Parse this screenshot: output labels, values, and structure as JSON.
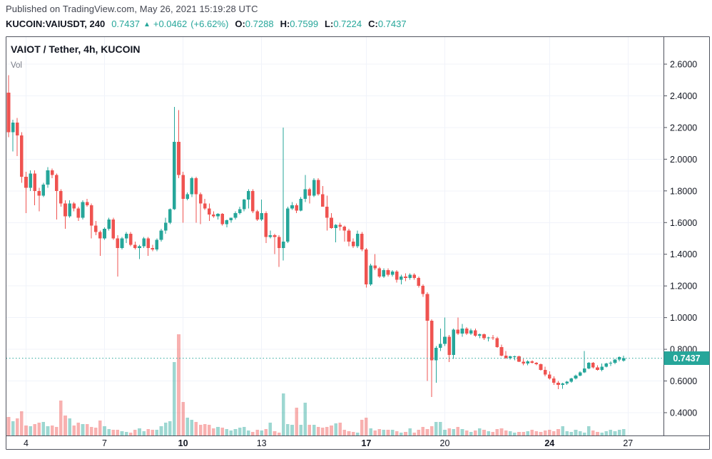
{
  "header": {
    "published": "Published on TradingView.com, May 26, 2021 15:19:28 UTC",
    "symbol": "KUCOIN:VAIUSDT, 240",
    "last_price": "0.7437",
    "arrow": "▲",
    "change_abs": "+0.0462",
    "change_pct": "(+6.62%)",
    "ohlc": {
      "o_label": "O:",
      "o": "0.7288",
      "h_label": "H:",
      "h": "0.7599",
      "l_label": "L:",
      "l": "0.7224",
      "c_label": "C:",
      "c": "0.7437"
    }
  },
  "chart": {
    "title": "VAIOT / Tether, 4h, KUCOIN",
    "indicator_label": "Vol",
    "price_label": "0.7437",
    "colors": {
      "up": "#26a69a",
      "down": "#ef5350",
      "grid": "#f0f3fa",
      "frame": "#50535e",
      "axis_text": "#131722",
      "muted_text": "#787b86",
      "price_line": "#26a69a",
      "badge_bg": "#26a69a",
      "badge_text": "#ffffff"
    }
  },
  "chart_data": {
    "type": "candlestick",
    "title": "VAIOT / Tether, 4h, KUCOIN",
    "symbol": "KUCOIN:VAIUSDT",
    "interval": "240",
    "current_price_line": 0.7437,
    "y_axis": {
      "side": "right",
      "tick_values": [
        2.6,
        2.4,
        2.2,
        2.0,
        1.8,
        1.6,
        1.4,
        1.2,
        1.0,
        0.8,
        0.6,
        0.4
      ],
      "tick_labels": [
        "2.6000",
        "2.4000",
        "2.2000",
        "2.0000",
        "1.8000",
        "1.6000",
        "1.4000",
        "1.2000",
        "1.0000",
        "0.8000",
        "0.6000",
        "0.4000"
      ],
      "visible_range": [
        0.3,
        2.7
      ]
    },
    "x_axis": {
      "context": "days of May 2021 (from header date)",
      "ticks": [
        {
          "label": "4",
          "candle_index": 4,
          "bold": false
        },
        {
          "label": "7",
          "candle_index": 22,
          "bold": false
        },
        {
          "label": "10",
          "candle_index": 40,
          "bold": true
        },
        {
          "label": "13",
          "candle_index": 58,
          "bold": false
        },
        {
          "label": "17",
          "candle_index": 82,
          "bold": true
        },
        {
          "label": "20",
          "candle_index": 100,
          "bold": false
        },
        {
          "label": "24",
          "candle_index": 124,
          "bold": true
        },
        {
          "label": "27",
          "candle_index": 142,
          "bold": false
        }
      ]
    },
    "candles_format": [
      "open",
      "high",
      "low",
      "close"
    ],
    "candles": [
      [
        2.42,
        2.53,
        2.14,
        2.17
      ],
      [
        2.17,
        2.25,
        2.05,
        2.23
      ],
      [
        2.23,
        2.26,
        2.02,
        2.15
      ],
      [
        2.15,
        2.17,
        1.85,
        1.89
      ],
      [
        1.89,
        1.92,
        1.66,
        1.82
      ],
      [
        1.82,
        1.93,
        1.8,
        1.91
      ],
      [
        1.91,
        1.93,
        1.71,
        1.8
      ],
      [
        1.8,
        1.82,
        1.67,
        1.77
      ],
      [
        1.77,
        1.85,
        1.76,
        1.84
      ],
      [
        1.84,
        1.95,
        1.82,
        1.93
      ],
      [
        1.93,
        1.94,
        1.88,
        1.9
      ],
      [
        1.9,
        1.91,
        1.62,
        1.8
      ],
      [
        1.8,
        1.81,
        1.7,
        1.72
      ],
      [
        1.72,
        1.74,
        1.56,
        1.64
      ],
      [
        1.64,
        1.74,
        1.63,
        1.72
      ],
      [
        1.72,
        1.73,
        1.67,
        1.69
      ],
      [
        1.69,
        1.7,
        1.61,
        1.63
      ],
      [
        1.63,
        1.74,
        1.62,
        1.73
      ],
      [
        1.73,
        1.75,
        1.7,
        1.71
      ],
      [
        1.71,
        1.72,
        1.5,
        1.58
      ],
      [
        1.58,
        1.61,
        1.52,
        1.54
      ],
      [
        1.54,
        1.55,
        1.39,
        1.5
      ],
      [
        1.5,
        1.57,
        1.49,
        1.56
      ],
      [
        1.56,
        1.63,
        1.55,
        1.62
      ],
      [
        1.62,
        1.63,
        1.49,
        1.5
      ],
      [
        1.5,
        1.52,
        1.26,
        1.44
      ],
      [
        1.44,
        1.51,
        1.43,
        1.5
      ],
      [
        1.5,
        1.54,
        1.47,
        1.53
      ],
      [
        1.53,
        1.54,
        1.45,
        1.46
      ],
      [
        1.46,
        1.48,
        1.43,
        1.44
      ],
      [
        1.44,
        1.46,
        1.37,
        1.45
      ],
      [
        1.45,
        1.51,
        1.44,
        1.5
      ],
      [
        1.5,
        1.51,
        1.39,
        1.44
      ],
      [
        1.44,
        1.46,
        1.42,
        1.43
      ],
      [
        1.43,
        1.5,
        1.42,
        1.49
      ],
      [
        1.49,
        1.56,
        1.48,
        1.55
      ],
      [
        1.55,
        1.63,
        1.53,
        1.6
      ],
      [
        1.6,
        1.69,
        1.59,
        1.685
      ],
      [
        1.685,
        2.33,
        1.68,
        2.11
      ],
      [
        2.11,
        2.31,
        1.88,
        1.9
      ],
      [
        1.9,
        1.92,
        1.6,
        1.75
      ],
      [
        1.75,
        1.79,
        1.74,
        1.78
      ],
      [
        1.78,
        1.89,
        1.76,
        1.88
      ],
      [
        1.88,
        1.89,
        1.6,
        1.78
      ],
      [
        1.78,
        1.79,
        1.59,
        1.72
      ],
      [
        1.72,
        1.75,
        1.68,
        1.69
      ],
      [
        1.69,
        1.72,
        1.61,
        1.65
      ],
      [
        1.65,
        1.67,
        1.63,
        1.64
      ],
      [
        1.64,
        1.66,
        1.62,
        1.655
      ],
      [
        1.655,
        1.66,
        1.58,
        1.59
      ],
      [
        1.59,
        1.62,
        1.57,
        1.615
      ],
      [
        1.615,
        1.63,
        1.6,
        1.63
      ],
      [
        1.63,
        1.67,
        1.62,
        1.66
      ],
      [
        1.66,
        1.7,
        1.65,
        1.685
      ],
      [
        1.685,
        1.75,
        1.67,
        1.745
      ],
      [
        1.745,
        1.81,
        1.69,
        1.8
      ],
      [
        1.8,
        1.81,
        1.66,
        1.67
      ],
      [
        1.67,
        1.68,
        1.61,
        1.62
      ],
      [
        1.62,
        1.745,
        1.61,
        1.66
      ],
      [
        1.66,
        1.67,
        1.47,
        1.51
      ],
      [
        1.51,
        1.55,
        1.5,
        1.52
      ],
      [
        1.52,
        1.53,
        1.4,
        1.51
      ],
      [
        1.51,
        1.52,
        1.32,
        1.44
      ],
      [
        1.44,
        2.2,
        1.36,
        1.48
      ],
      [
        1.48,
        1.7,
        1.47,
        1.69
      ],
      [
        1.69,
        1.73,
        1.68,
        1.71
      ],
      [
        1.71,
        1.72,
        1.66,
        1.675
      ],
      [
        1.675,
        1.76,
        1.67,
        1.75
      ],
      [
        1.75,
        1.9,
        1.73,
        1.81
      ],
      [
        1.81,
        1.82,
        1.72,
        1.77
      ],
      [
        1.77,
        1.88,
        1.76,
        1.87
      ],
      [
        1.87,
        1.88,
        1.77,
        1.78
      ],
      [
        1.78,
        1.83,
        1.7,
        1.7
      ],
      [
        1.7,
        1.77,
        1.55,
        1.63
      ],
      [
        1.63,
        1.66,
        1.56,
        1.565
      ],
      [
        1.565,
        1.59,
        1.475,
        1.585
      ],
      [
        1.585,
        1.6,
        1.55,
        1.575
      ],
      [
        1.575,
        1.58,
        1.48,
        1.55
      ],
      [
        1.55,
        1.56,
        1.45,
        1.48
      ],
      [
        1.48,
        1.5,
        1.44,
        1.45
      ],
      [
        1.45,
        1.55,
        1.44,
        1.53
      ],
      [
        1.53,
        1.54,
        1.42,
        1.43
      ],
      [
        1.43,
        1.44,
        1.19,
        1.21
      ],
      [
        1.21,
        1.34,
        1.2,
        1.33
      ],
      [
        1.33,
        1.4,
        1.3,
        1.31
      ],
      [
        1.31,
        1.32,
        1.25,
        1.26
      ],
      [
        1.26,
        1.31,
        1.25,
        1.3
      ],
      [
        1.3,
        1.31,
        1.26,
        1.27
      ],
      [
        1.27,
        1.3,
        1.26,
        1.29
      ],
      [
        1.29,
        1.3,
        1.22,
        1.24
      ],
      [
        1.24,
        1.27,
        1.21,
        1.26
      ],
      [
        1.26,
        1.28,
        1.23,
        1.25
      ],
      [
        1.25,
        1.28,
        1.24,
        1.27
      ],
      [
        1.27,
        1.28,
        1.24,
        1.25
      ],
      [
        1.25,
        1.26,
        1.19,
        1.2
      ],
      [
        1.2,
        1.21,
        1.13,
        1.15
      ],
      [
        1.15,
        1.16,
        0.6,
        0.98
      ],
      [
        0.98,
        0.99,
        0.5,
        0.73
      ],
      [
        0.73,
        0.82,
        0.59,
        0.81
      ],
      [
        0.81,
        0.93,
        0.79,
        0.835
      ],
      [
        0.835,
        1.0,
        0.82,
        0.88
      ],
      [
        0.88,
        0.89,
        0.72,
        0.765
      ],
      [
        0.765,
        0.93,
        0.74,
        0.925
      ],
      [
        0.925,
        1.0,
        0.89,
        0.9
      ],
      [
        0.9,
        0.96,
        0.88,
        0.93
      ],
      [
        0.93,
        0.94,
        0.89,
        0.9
      ],
      [
        0.9,
        0.93,
        0.89,
        0.92
      ],
      [
        0.92,
        0.93,
        0.88,
        0.885
      ],
      [
        0.885,
        0.9,
        0.87,
        0.895
      ],
      [
        0.895,
        0.9,
        0.86,
        0.87
      ],
      [
        0.87,
        0.88,
        0.85,
        0.875
      ],
      [
        0.875,
        0.89,
        0.86,
        0.87
      ],
      [
        0.87,
        0.88,
        0.81,
        0.815
      ],
      [
        0.815,
        0.83,
        0.755,
        0.76
      ],
      [
        0.76,
        0.79,
        0.74,
        0.745
      ],
      [
        0.745,
        0.76,
        0.735,
        0.755
      ],
      [
        0.755,
        0.76,
        0.73,
        0.756
      ],
      [
        0.756,
        0.76,
        0.72,
        0.722
      ],
      [
        0.722,
        0.74,
        0.7,
        0.71
      ],
      [
        0.71,
        0.73,
        0.7,
        0.725
      ],
      [
        0.725,
        0.73,
        0.71,
        0.715
      ],
      [
        0.715,
        0.72,
        0.7,
        0.705
      ],
      [
        0.705,
        0.71,
        0.665,
        0.67
      ],
      [
        0.67,
        0.69,
        0.63,
        0.64
      ],
      [
        0.64,
        0.66,
        0.61,
        0.615
      ],
      [
        0.615,
        0.63,
        0.575,
        0.59
      ],
      [
        0.59,
        0.6,
        0.548,
        0.575
      ],
      [
        0.575,
        0.59,
        0.55,
        0.585
      ],
      [
        0.585,
        0.6,
        0.575,
        0.595
      ],
      [
        0.595,
        0.62,
        0.59,
        0.615
      ],
      [
        0.615,
        0.64,
        0.61,
        0.635
      ],
      [
        0.635,
        0.66,
        0.63,
        0.655
      ],
      [
        0.655,
        0.79,
        0.65,
        0.68
      ],
      [
        0.68,
        0.72,
        0.675,
        0.715
      ],
      [
        0.715,
        0.72,
        0.68,
        0.685
      ],
      [
        0.685,
        0.7,
        0.665,
        0.67
      ],
      [
        0.67,
        0.71,
        0.66,
        0.69
      ],
      [
        0.69,
        0.715,
        0.685,
        0.71
      ],
      [
        0.71,
        0.725,
        0.695,
        0.715
      ],
      [
        0.715,
        0.74,
        0.705,
        0.735
      ],
      [
        0.735,
        0.755,
        0.725,
        0.75
      ],
      [
        0.7288,
        0.7599,
        0.7224,
        0.7437
      ]
    ],
    "volume_scale": "relative height (no numeric axis shown)",
    "volumes": [
      26,
      20,
      24,
      34,
      14,
      13,
      16,
      18,
      19,
      13,
      14,
      12,
      49,
      28,
      24,
      14,
      18,
      16,
      16,
      12,
      11,
      21,
      13,
      9,
      8,
      8,
      6,
      5,
      4,
      8,
      10,
      6,
      9,
      8,
      8,
      13,
      18,
      20,
      103,
      142,
      47,
      25,
      22,
      19,
      15,
      16,
      15,
      10,
      12,
      11,
      9,
      7,
      9,
      11,
      12,
      7,
      5,
      8,
      7,
      9,
      18,
      6,
      4,
      59,
      16,
      15,
      39,
      15,
      46,
      15,
      15,
      12,
      11,
      12,
      14,
      17,
      18,
      8,
      6,
      5,
      4,
      22,
      25,
      10,
      7,
      9,
      8,
      8,
      8,
      6,
      4,
      5,
      10,
      4,
      8,
      12,
      9,
      13,
      19,
      19,
      8,
      10,
      9,
      12,
      9,
      7,
      5,
      7,
      10,
      8,
      6,
      5,
      9,
      10,
      7,
      6,
      4,
      5,
      5,
      6,
      8,
      6,
      5,
      7,
      8,
      6,
      9,
      13,
      6,
      5,
      8,
      6,
      4,
      13,
      7,
      5,
      4,
      6,
      8,
      6,
      8,
      9
    ]
  }
}
